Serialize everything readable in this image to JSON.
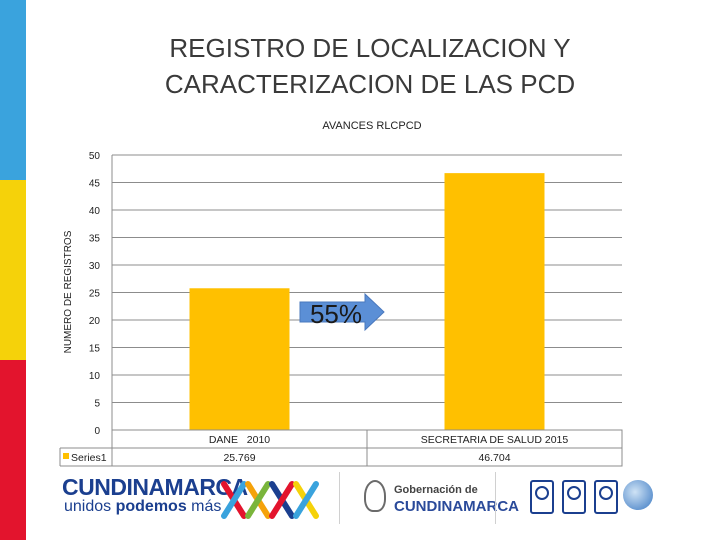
{
  "slide": {
    "title_lines": [
      "REGISTRO DE LOCALIZACION Y",
      "CARACTERIZACION DE LAS PCD"
    ],
    "side_colors": [
      "#3aa3dd",
      "#f5d20a",
      "#e3142d"
    ]
  },
  "chart_data": {
    "type": "bar",
    "title": "AVANCES  RLCPCD",
    "xlabel": "",
    "ylabel": "NUMERO DE REGISTROS",
    "ylim": [
      0,
      50
    ],
    "yticks": [
      0,
      5,
      10,
      15,
      20,
      25,
      30,
      35,
      40,
      45,
      50
    ],
    "grid": true,
    "categories": [
      "DANE   2010",
      "SECRETARIA DE SALUD 2015"
    ],
    "series": [
      {
        "name": "Series1",
        "values": [
          25.769,
          46.704
        ],
        "data_labels": [
          "25.769",
          "46.704"
        ],
        "color": "#ffc000"
      }
    ],
    "annotation": {
      "text": "55%",
      "shape": "right-arrow",
      "color": "#5b8fd6"
    },
    "data_table": true
  },
  "footer": {
    "cundinamarca_word": "CUNDINAMARCA",
    "slogan_plain": "unidos ",
    "slogan_bold": "podemos",
    "slogan_end": " más",
    "gob_line1": "Gobernación de",
    "gob_line2": "CUNDINAMARCA",
    "cert_labels": [
      "",
      "",
      "",
      ""
    ]
  }
}
